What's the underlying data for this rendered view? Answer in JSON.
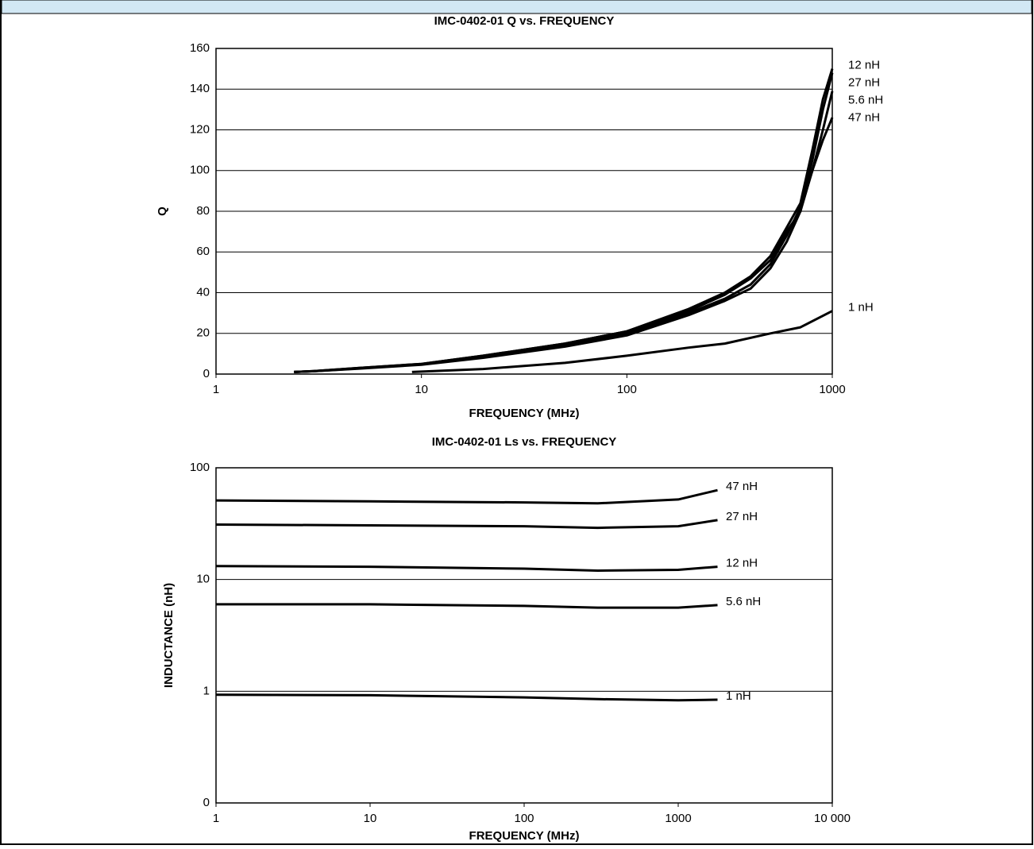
{
  "chart_data": [
    {
      "type": "line",
      "title": "IMC-0402-01 Q vs. FREQUENCY",
      "x_label": "FREQUENCY (MHz)",
      "y_label": "Q",
      "xscale": "log",
      "xlim": [
        1,
        1000
      ],
      "xticks": [
        1,
        10,
        100,
        1000
      ],
      "ylim": [
        0,
        160
      ],
      "yticks": [
        0,
        20,
        40,
        60,
        80,
        100,
        120,
        140,
        160
      ],
      "grid": true,
      "series": [
        {
          "name": "12 nH",
          "color": "#000000",
          "x": [
            2.4,
            3,
            5,
            10,
            20,
            50,
            100,
            200,
            300,
            400,
            500,
            600,
            700,
            800,
            900,
            1000
          ],
          "values": [
            1,
            1.5,
            3,
            5,
            9,
            15,
            21,
            32,
            40,
            48,
            58,
            72,
            84,
            110,
            135,
            150
          ]
        },
        {
          "name": "27 nH",
          "color": "#000000",
          "x": [
            2.4,
            3,
            5,
            10,
            20,
            50,
            100,
            200,
            300,
            400,
            500,
            600,
            700,
            800,
            900,
            1000
          ],
          "values": [
            1,
            1.5,
            3,
            5,
            9,
            15,
            21,
            31,
            39,
            47,
            56,
            70,
            80,
            105,
            130,
            148
          ]
        },
        {
          "name": "5.6 nH",
          "color": "#000000",
          "x": [
            2.4,
            3,
            5,
            10,
            20,
            50,
            100,
            200,
            300,
            400,
            500,
            600,
            700,
            800,
            900,
            1000
          ],
          "values": [
            1,
            1.4,
            2.8,
            4.8,
            8.5,
            14,
            20,
            30,
            37,
            44,
            54,
            68,
            82,
            100,
            120,
            139
          ]
        },
        {
          "name": "47 nH",
          "color": "#000000",
          "x": [
            2.4,
            3,
            5,
            10,
            20,
            50,
            100,
            200,
            300,
            400,
            500,
            600,
            700,
            800,
            900,
            1000
          ],
          "values": [
            1,
            1.4,
            2.7,
            4.6,
            8,
            13.5,
            19,
            29,
            36,
            42,
            52,
            65,
            80,
            100,
            115,
            126
          ]
        },
        {
          "name": "1 nH",
          "color": "#000000",
          "x": [
            9,
            20,
            50,
            100,
            200,
            300,
            500,
            700,
            1000
          ],
          "values": [
            1,
            2.5,
            5.5,
            9,
            13,
            15,
            20,
            23,
            31
          ]
        }
      ]
    },
    {
      "type": "line",
      "title": "IMC-0402-01 Ls vs. FREQUENCY",
      "x_label": "FREQUENCY (MHz)",
      "y_label": "INDUCTANCE (nH)",
      "xscale": "log",
      "yscale": "log",
      "xlim": [
        1,
        10000
      ],
      "xticks": [
        1,
        10,
        100,
        1000,
        {
          "value": 10000,
          "label": "10 000"
        }
      ],
      "ylim": [
        0.1,
        100
      ],
      "yticks": [
        {
          "value": 0.1,
          "label": "0"
        },
        1,
        10,
        100
      ],
      "grid": true,
      "series": [
        {
          "name": "47 nH",
          "color": "#000000",
          "x": [
            1,
            10,
            100,
            300,
            1000,
            1800
          ],
          "values": [
            51,
            50,
            49,
            48,
            52,
            63
          ]
        },
        {
          "name": "27 nH",
          "color": "#000000",
          "x": [
            1,
            10,
            100,
            300,
            1000,
            1800
          ],
          "values": [
            31,
            30.5,
            30,
            29,
            30,
            34
          ]
        },
        {
          "name": "12 nH",
          "color": "#000000",
          "x": [
            1,
            10,
            100,
            300,
            1000,
            1800
          ],
          "values": [
            13.2,
            13,
            12.5,
            12,
            12.2,
            13
          ]
        },
        {
          "name": "5.6 nH",
          "color": "#000000",
          "x": [
            1,
            10,
            100,
            300,
            1000,
            1800
          ],
          "values": [
            6,
            6,
            5.8,
            5.6,
            5.6,
            5.9
          ]
        },
        {
          "name": "1 nH",
          "color": "#000000",
          "x": [
            1,
            10,
            100,
            300,
            1000,
            1800
          ],
          "values": [
            0.93,
            0.92,
            0.88,
            0.85,
            0.83,
            0.84
          ]
        }
      ]
    }
  ]
}
